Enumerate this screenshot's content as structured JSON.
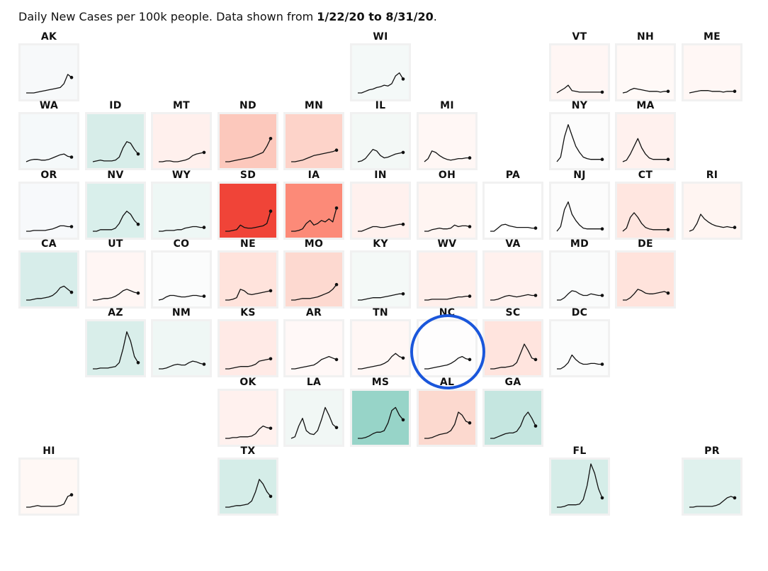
{
  "header": {
    "subtitle_prefix": "Daily New Cases per 100k people. Data shown from ",
    "date_range": "1/22/20 to 8/31/20",
    "subtitle_suffix": "."
  },
  "colors": {
    "line": "#111111",
    "tile_border": "#f1f1f1",
    "highlight_circle": "#1a56db"
  },
  "highlight": {
    "state": "NC",
    "shape": "circle"
  },
  "chart_data": {
    "type": "small-multiples-line",
    "layout": "tile-grid-map",
    "x_range": [
      "1/22/20",
      "8/31/20"
    ],
    "y_unit": "daily new cases per 100k",
    "tiles": [
      {
        "state": "AK",
        "col": 0,
        "row": 0,
        "fill": "#f7f9fa",
        "values": [
          0,
          0,
          0,
          1,
          2,
          3,
          4,
          5,
          6,
          7,
          12,
          24,
          20
        ]
      },
      {
        "state": "WI",
        "col": 5,
        "row": 0,
        "fill": "#f4f9f8",
        "values": [
          0,
          0,
          2,
          4,
          5,
          7,
          8,
          10,
          9,
          12,
          22,
          26,
          18
        ]
      },
      {
        "state": "VT",
        "col": 8,
        "row": 0,
        "fill": "#fff6f4",
        "values": [
          0,
          3,
          6,
          10,
          3,
          2,
          1,
          1,
          1,
          1,
          1,
          1,
          1
        ]
      },
      {
        "state": "NH",
        "col": 9,
        "row": 0,
        "fill": "#fff9f7",
        "values": [
          0,
          1,
          4,
          6,
          5,
          4,
          3,
          2,
          2,
          2,
          1,
          2,
          2
        ]
      },
      {
        "state": "ME",
        "col": 10,
        "row": 0,
        "fill": "#fff7f5",
        "values": [
          0,
          1,
          2,
          3,
          3,
          3,
          2,
          2,
          2,
          1,
          2,
          2,
          2
        ]
      },
      {
        "state": "WA",
        "col": 0,
        "row": 1,
        "fill": "#f5f9fa",
        "values": [
          0,
          2,
          3,
          3,
          2,
          2,
          3,
          5,
          7,
          9,
          10,
          7,
          6
        ]
      },
      {
        "state": "ID",
        "col": 1,
        "row": 1,
        "fill": "#d7ede9",
        "values": [
          0,
          1,
          2,
          1,
          1,
          1,
          2,
          6,
          18,
          26,
          24,
          16,
          10
        ]
      },
      {
        "state": "MT",
        "col": 2,
        "row": 1,
        "fill": "#fff0ed",
        "values": [
          0,
          0,
          1,
          1,
          0,
          0,
          1,
          2,
          4,
          8,
          10,
          11,
          12
        ]
      },
      {
        "state": "ND",
        "col": 3,
        "row": 1,
        "fill": "#fcc8bc",
        "values": [
          0,
          0,
          1,
          2,
          3,
          4,
          5,
          6,
          8,
          10,
          12,
          20,
          30
        ]
      },
      {
        "state": "MN",
        "col": 4,
        "row": 1,
        "fill": "#fdd3c9",
        "values": [
          0,
          0,
          1,
          2,
          4,
          6,
          8,
          9,
          10,
          11,
          12,
          13,
          15
        ]
      },
      {
        "state": "IL",
        "col": 5,
        "row": 1,
        "fill": "#f3f8f6",
        "values": [
          0,
          1,
          4,
          10,
          16,
          14,
          8,
          5,
          6,
          8,
          10,
          11,
          12
        ]
      },
      {
        "state": "MI",
        "col": 6,
        "row": 1,
        "fill": "#fff7f5",
        "values": [
          0,
          4,
          14,
          12,
          8,
          5,
          3,
          2,
          3,
          4,
          4,
          5,
          5
        ]
      },
      {
        "state": "NY",
        "col": 8,
        "row": 1,
        "fill": "#fcfcfc",
        "values": [
          0,
          6,
          32,
          48,
          34,
          20,
          12,
          6,
          4,
          3,
          3,
          3,
          3
        ]
      },
      {
        "state": "MA",
        "col": 9,
        "row": 1,
        "fill": "#fff1ee",
        "values": [
          0,
          2,
          10,
          20,
          30,
          18,
          10,
          5,
          3,
          3,
          3,
          3,
          3
        ]
      },
      {
        "state": "OR",
        "col": 0,
        "row": 2,
        "fill": "#f7f9fb",
        "values": [
          0,
          0,
          1,
          1,
          1,
          1,
          2,
          3,
          5,
          7,
          7,
          6,
          6
        ]
      },
      {
        "state": "NV",
        "col": 1,
        "row": 2,
        "fill": "#d9efeb",
        "values": [
          0,
          0,
          2,
          2,
          2,
          2,
          4,
          10,
          20,
          26,
          22,
          14,
          9
        ]
      },
      {
        "state": "WY",
        "col": 2,
        "row": 2,
        "fill": "#eef7f5",
        "values": [
          0,
          0,
          1,
          1,
          1,
          2,
          2,
          4,
          5,
          6,
          6,
          5,
          5
        ]
      },
      {
        "state": "SD",
        "col": 3,
        "row": 2,
        "fill": "#f04438",
        "values": [
          0,
          0,
          1,
          2,
          8,
          5,
          4,
          4,
          5,
          6,
          7,
          10,
          26
        ]
      },
      {
        "state": "IA",
        "col": 4,
        "row": 2,
        "fill": "#fc8a78",
        "values": [
          0,
          0,
          1,
          3,
          10,
          14,
          8,
          10,
          14,
          12,
          16,
          12,
          30
        ]
      },
      {
        "state": "IN",
        "col": 5,
        "row": 2,
        "fill": "#fff1ee",
        "values": [
          0,
          0,
          2,
          4,
          6,
          6,
          5,
          5,
          6,
          7,
          8,
          9,
          9
        ]
      },
      {
        "state": "OH",
        "col": 6,
        "row": 2,
        "fill": "#fff5f2",
        "values": [
          0,
          0,
          2,
          3,
          4,
          3,
          3,
          4,
          8,
          6,
          7,
          7,
          6
        ]
      },
      {
        "state": "PA",
        "col": 7,
        "row": 2,
        "fill": "#ffffff",
        "values": [
          0,
          0,
          4,
          8,
          9,
          7,
          6,
          5,
          5,
          5,
          5,
          4,
          4
        ]
      },
      {
        "state": "NJ",
        "col": 8,
        "row": 2,
        "fill": "#fcfcfc",
        "values": [
          0,
          6,
          28,
          38,
          22,
          14,
          8,
          4,
          3,
          3,
          3,
          3,
          3
        ]
      },
      {
        "state": "CT",
        "col": 9,
        "row": 2,
        "fill": "#ffe6e0",
        "values": [
          0,
          4,
          18,
          24,
          18,
          10,
          5,
          3,
          2,
          2,
          2,
          2,
          2
        ]
      },
      {
        "state": "RI",
        "col": 10,
        "row": 2,
        "fill": "#fff5f2",
        "values": [
          0,
          2,
          10,
          22,
          16,
          12,
          9,
          7,
          6,
          5,
          6,
          5,
          5
        ]
      },
      {
        "state": "CA",
        "col": 0,
        "row": 3,
        "fill": "#d7edea",
        "values": [
          0,
          0,
          1,
          2,
          2,
          3,
          4,
          6,
          10,
          16,
          18,
          14,
          10
        ]
      },
      {
        "state": "UT",
        "col": 1,
        "row": 3,
        "fill": "#fff6f4",
        "values": [
          0,
          0,
          1,
          2,
          2,
          3,
          5,
          8,
          12,
          14,
          12,
          10,
          9
        ]
      },
      {
        "state": "CO",
        "col": 2,
        "row": 3,
        "fill": "#fbfcfc",
        "values": [
          0,
          1,
          4,
          6,
          6,
          5,
          4,
          4,
          5,
          6,
          6,
          5,
          5
        ]
      },
      {
        "state": "NE",
        "col": 3,
        "row": 3,
        "fill": "#ffe3dc",
        "values": [
          0,
          0,
          1,
          3,
          14,
          12,
          8,
          7,
          8,
          9,
          10,
          11,
          12
        ]
      },
      {
        "state": "MO",
        "col": 4,
        "row": 3,
        "fill": "#fdd9d0",
        "values": [
          0,
          0,
          1,
          2,
          2,
          2,
          3,
          4,
          6,
          8,
          10,
          14,
          20
        ]
      },
      {
        "state": "KY",
        "col": 5,
        "row": 3,
        "fill": "#f4f9f7",
        "values": [
          0,
          0,
          1,
          2,
          3,
          3,
          3,
          4,
          5,
          6,
          7,
          8,
          8
        ]
      },
      {
        "state": "WV",
        "col": 6,
        "row": 3,
        "fill": "#ffefeb",
        "values": [
          0,
          0,
          1,
          1,
          1,
          1,
          1,
          2,
          3,
          4,
          4,
          5,
          5
        ]
      },
      {
        "state": "VA",
        "col": 7,
        "row": 3,
        "fill": "#fff1ee",
        "values": [
          0,
          0,
          1,
          3,
          5,
          6,
          5,
          4,
          5,
          6,
          7,
          6,
          6
        ]
      },
      {
        "state": "MD",
        "col": 8,
        "row": 3,
        "fill": "#fafbfb",
        "values": [
          0,
          0,
          3,
          8,
          12,
          11,
          8,
          6,
          6,
          8,
          7,
          6,
          6
        ]
      },
      {
        "state": "DE",
        "col": 9,
        "row": 3,
        "fill": "#ffe3dc",
        "values": [
          0,
          0,
          3,
          8,
          14,
          12,
          9,
          8,
          8,
          9,
          10,
          11,
          9
        ]
      },
      {
        "state": "AZ",
        "col": 1,
        "row": 4,
        "fill": "#d9eeea",
        "values": [
          0,
          0,
          1,
          1,
          1,
          2,
          3,
          8,
          26,
          48,
          36,
          16,
          8
        ]
      },
      {
        "state": "NM",
        "col": 2,
        "row": 4,
        "fill": "#eff7f5",
        "values": [
          0,
          0,
          1,
          3,
          5,
          6,
          5,
          5,
          8,
          10,
          9,
          7,
          6
        ]
      },
      {
        "state": "KS",
        "col": 3,
        "row": 4,
        "fill": "#ffeae6",
        "values": [
          0,
          0,
          1,
          2,
          3,
          3,
          3,
          4,
          6,
          10,
          11,
          12,
          13
        ]
      },
      {
        "state": "AR",
        "col": 4,
        "row": 4,
        "fill": "#fff8f7",
        "values": [
          0,
          0,
          1,
          2,
          3,
          4,
          5,
          8,
          12,
          14,
          16,
          14,
          12
        ]
      },
      {
        "state": "TN",
        "col": 5,
        "row": 4,
        "fill": "#fff7f5",
        "values": [
          0,
          0,
          1,
          2,
          3,
          4,
          5,
          7,
          10,
          16,
          20,
          16,
          14
        ]
      },
      {
        "state": "NC",
        "col": 6,
        "row": 4,
        "fill": "#fefdfd",
        "values": [
          0,
          0,
          1,
          2,
          3,
          4,
          5,
          7,
          10,
          14,
          16,
          13,
          12
        ]
      },
      {
        "state": "SC",
        "col": 7,
        "row": 4,
        "fill": "#ffe4de",
        "values": [
          0,
          0,
          1,
          2,
          2,
          3,
          4,
          8,
          20,
          32,
          24,
          14,
          12
        ]
      },
      {
        "state": "DC",
        "col": 8,
        "row": 4,
        "fill": "#fbfcfc",
        "values": [
          0,
          0,
          3,
          8,
          18,
          12,
          8,
          6,
          6,
          7,
          7,
          6,
          6
        ]
      },
      {
        "state": "OK",
        "col": 3,
        "row": 5,
        "fill": "#fff1ee",
        "values": [
          0,
          0,
          1,
          1,
          2,
          2,
          2,
          3,
          6,
          12,
          16,
          14,
          13
        ]
      },
      {
        "state": "LA",
        "col": 4,
        "row": 5,
        "fill": "#f1f7f5",
        "values": [
          0,
          2,
          16,
          26,
          10,
          6,
          5,
          10,
          24,
          40,
          30,
          18,
          14
        ]
      },
      {
        "state": "MS",
        "col": 5,
        "row": 5,
        "fill": "#97d4c8",
        "values": [
          0,
          0,
          1,
          3,
          6,
          8,
          8,
          10,
          20,
          36,
          40,
          30,
          24
        ]
      },
      {
        "state": "AL",
        "col": 6,
        "row": 5,
        "fill": "#fcd9cf",
        "values": [
          0,
          0,
          1,
          3,
          5,
          6,
          7,
          10,
          18,
          34,
          30,
          22,
          20
        ]
      },
      {
        "state": "GA",
        "col": 7,
        "row": 5,
        "fill": "#c5e6e0",
        "values": [
          0,
          0,
          2,
          4,
          6,
          7,
          7,
          9,
          16,
          28,
          34,
          26,
          16
        ]
      },
      {
        "state": "HI",
        "col": 0,
        "row": 6,
        "fill": "#fff8f5",
        "values": [
          0,
          0,
          1,
          2,
          1,
          1,
          1,
          1,
          1,
          2,
          4,
          14,
          16
        ]
      },
      {
        "state": "TX",
        "col": 3,
        "row": 6,
        "fill": "#d5ede8",
        "values": [
          0,
          0,
          1,
          2,
          2,
          3,
          4,
          8,
          20,
          36,
          30,
          20,
          14
        ]
      },
      {
        "state": "FL",
        "col": 8,
        "row": 6,
        "fill": "#d5ede8",
        "values": [
          0,
          0,
          1,
          3,
          3,
          3,
          4,
          10,
          28,
          56,
          44,
          24,
          12
        ]
      },
      {
        "state": "PR",
        "col": 10,
        "row": 6,
        "fill": "#dff1ed",
        "values": [
          0,
          0,
          1,
          1,
          1,
          1,
          1,
          2,
          4,
          8,
          12,
          14,
          12
        ]
      }
    ]
  }
}
